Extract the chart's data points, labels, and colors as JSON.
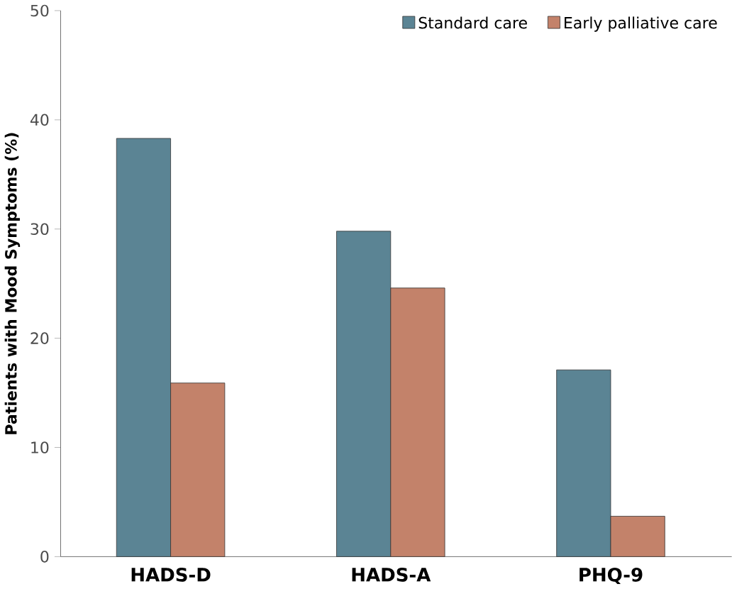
{
  "chart_data": {
    "type": "bar",
    "ylabel": "Patients with Mood Symptoms (%)",
    "categories": [
      "HADS-D",
      "HADS-A",
      "PHQ-9"
    ],
    "series": [
      {
        "name": "Standard care",
        "color": "#5b8494",
        "values": [
          38.3,
          29.8,
          17.1
        ]
      },
      {
        "name": "Early palliative care",
        "color": "#c3826a",
        "values": [
          15.9,
          24.6,
          3.7
        ]
      }
    ],
    "ylim": [
      0,
      50
    ],
    "yticks": [
      0,
      10,
      20,
      30,
      40,
      50
    ],
    "legend": "top right",
    "grid": false
  }
}
